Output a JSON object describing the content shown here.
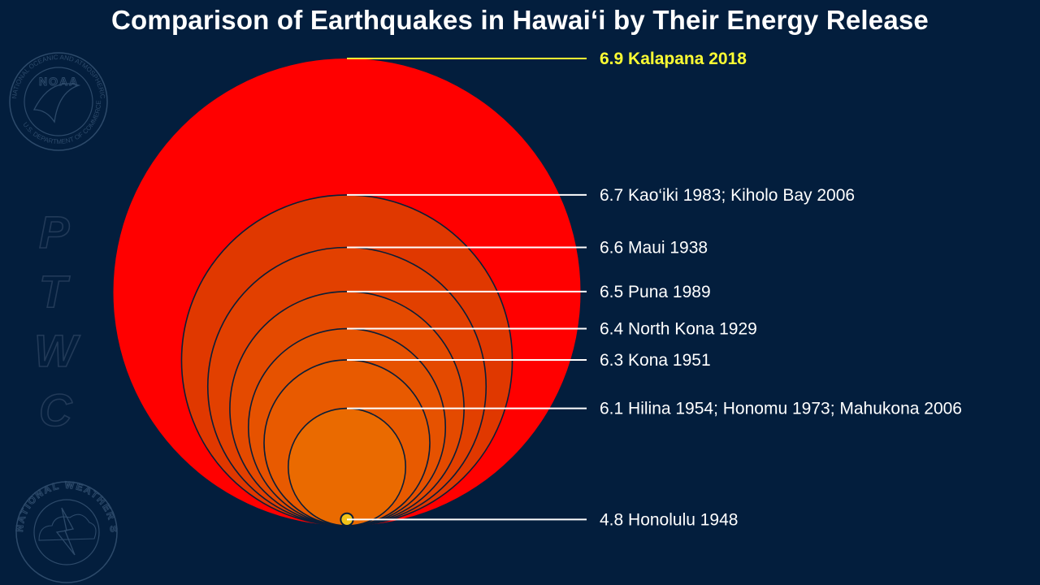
{
  "title": "Comparison of Earthquakes in Hawai‘i by Their Energy Release",
  "watermark": {
    "noaa_logo_text": "NOAA",
    "noaa_ring_text": "NATIONAL OCEANIC AND ATMOSPHERIC ADMINISTRATION",
    "noaa_ring_text_bottom": "U.S. DEPARTMENT OF COMMERCE",
    "ptwc_letters": [
      "P",
      "T",
      "W",
      "C"
    ],
    "nws_ring_text": "NATIONAL WEATHER SERVICE"
  },
  "colors": {
    "background": "#031e3d",
    "largest_circle": "#ff0000",
    "outline": "#0a1e38",
    "highlight_label": "#ffff33",
    "label": "#ffffff",
    "smallest_circle": "#f2c418"
  },
  "chart_data": {
    "type": "bubble",
    "title": "Comparison of Earthquakes in Hawai‘i by Their Energy Release",
    "encoding": "circle area proportional to energy release; circles share a common bottom tangent point",
    "series": [
      {
        "magnitude": 6.9,
        "label": "6.9 Kalapana 2018",
        "color": "#ff0000",
        "highlight": true
      },
      {
        "magnitude": 6.7,
        "label": "6.7 Kao‘iki 1983; Kiholo Bay 2006",
        "color": "#e03800",
        "highlight": false
      },
      {
        "magnitude": 6.6,
        "label": "6.6 Maui 1938",
        "color": "#e24000",
        "highlight": false
      },
      {
        "magnitude": 6.5,
        "label": "6.5 Puna 1989",
        "color": "#e44a00",
        "highlight": false
      },
      {
        "magnitude": 6.4,
        "label": "6.4 North Kona 1929",
        "color": "#e65200",
        "highlight": false
      },
      {
        "magnitude": 6.3,
        "label": "6.3 Kona 1951",
        "color": "#e85a00",
        "highlight": false
      },
      {
        "magnitude": 6.1,
        "label": "6.1 Hilina 1954; Honomu 1973; Mahukona 2006",
        "color": "#ea6a00",
        "highlight": false
      },
      {
        "magnitude": 4.8,
        "label": "4.8 Honolulu 1948",
        "color": "#f2c418",
        "highlight": false
      }
    ]
  }
}
